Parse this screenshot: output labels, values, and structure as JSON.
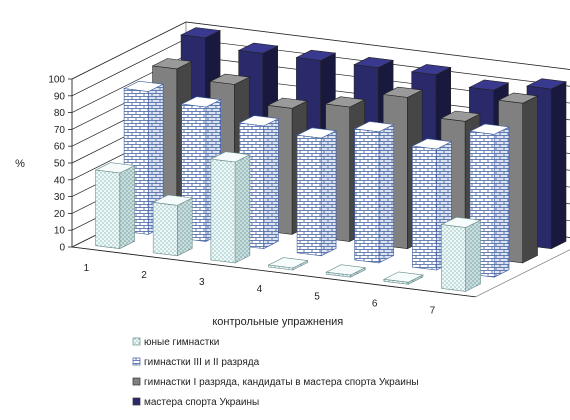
{
  "chart_data": {
    "type": "bar",
    "subtype": "3d-clustered-column",
    "categories": [
      "1",
      "2",
      "3",
      "4",
      "5",
      "6",
      "7"
    ],
    "xlabel": "контрольные упражнения",
    "ylabel": "%",
    "ylim": [
      0,
      100
    ],
    "yticks": [
      0,
      10,
      20,
      30,
      40,
      50,
      60,
      70,
      80,
      90,
      100
    ],
    "grid": true,
    "legend_position": "bottom-left",
    "series": [
      {
        "name": "юные гимнастки",
        "values": [
          45,
          30,
          60,
          0,
          0,
          0,
          38
        ],
        "color": "#e8f6f6",
        "pattern": "dots"
      },
      {
        "name": "гимнастки III и II разряда",
        "values": [
          85,
          80,
          73,
          70,
          78,
          72,
          85
        ],
        "color": "#ffffff",
        "pattern": "bricks"
      },
      {
        "name": "гимнастки I разряда, кандидаты в мастера спорта Украины",
        "values": [
          90,
          85,
          75,
          80,
          90,
          80,
          95
        ],
        "color": "#808080",
        "pattern": "solid"
      },
      {
        "name": "мастера спорта Украины",
        "values": [
          100,
          95,
          95,
          95,
          95,
          90,
          95
        ],
        "color": "#2a2a6a",
        "pattern": "solid"
      }
    ]
  }
}
